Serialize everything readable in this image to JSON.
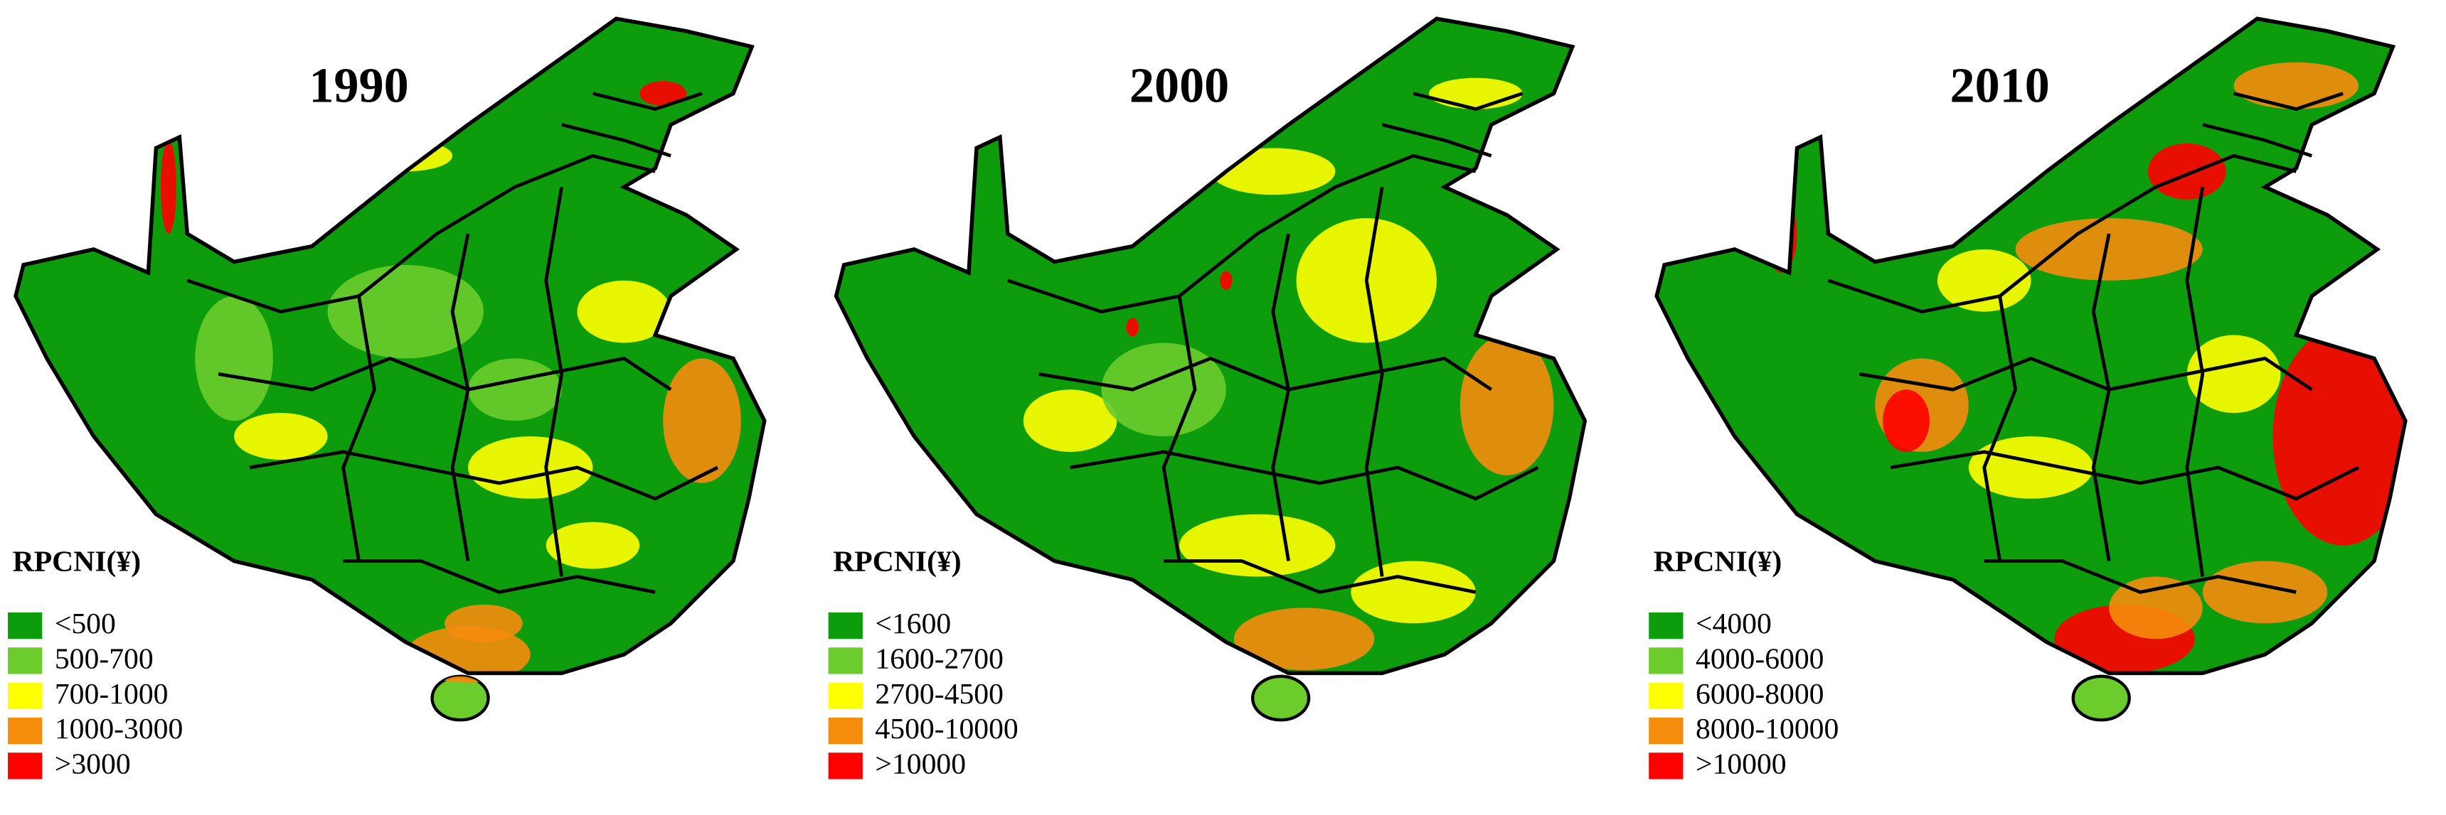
{
  "panels": [
    {
      "title": "1990",
      "legend_title": "RPCNI(¥)",
      "legend": [
        {
          "label": "<500",
          "color": "#0c9c0c"
        },
        {
          "label": "500-700",
          "color": "#6ccc2c"
        },
        {
          "label": "700-1000",
          "color": "#ffff00"
        },
        {
          "label": "1000-3000",
          "color": "#f58c0c"
        },
        {
          "label": ">3000",
          "color": "#ff0000"
        }
      ]
    },
    {
      "title": "2000",
      "legend_title": "RPCNI(¥)",
      "legend": [
        {
          "label": "<1600",
          "color": "#0c9c0c"
        },
        {
          "label": "1600-2700",
          "color": "#6ccc2c"
        },
        {
          "label": "2700-4500",
          "color": "#ffff00"
        },
        {
          "label": "4500-10000",
          "color": "#f58c0c"
        },
        {
          "label": ">10000",
          "color": "#ff0000"
        }
      ]
    },
    {
      "title": "2010",
      "legend_title": "RPCNI(¥)",
      "legend": [
        {
          "label": "<4000",
          "color": "#0c9c0c"
        },
        {
          "label": "4000-6000",
          "color": "#6ccc2c"
        },
        {
          "label": "6000-8000",
          "color": "#ffff00"
        },
        {
          "label": "8000-10000",
          "color": "#f58c0c"
        },
        {
          "label": ">10000",
          "color": "#ff0000"
        }
      ]
    }
  ]
}
